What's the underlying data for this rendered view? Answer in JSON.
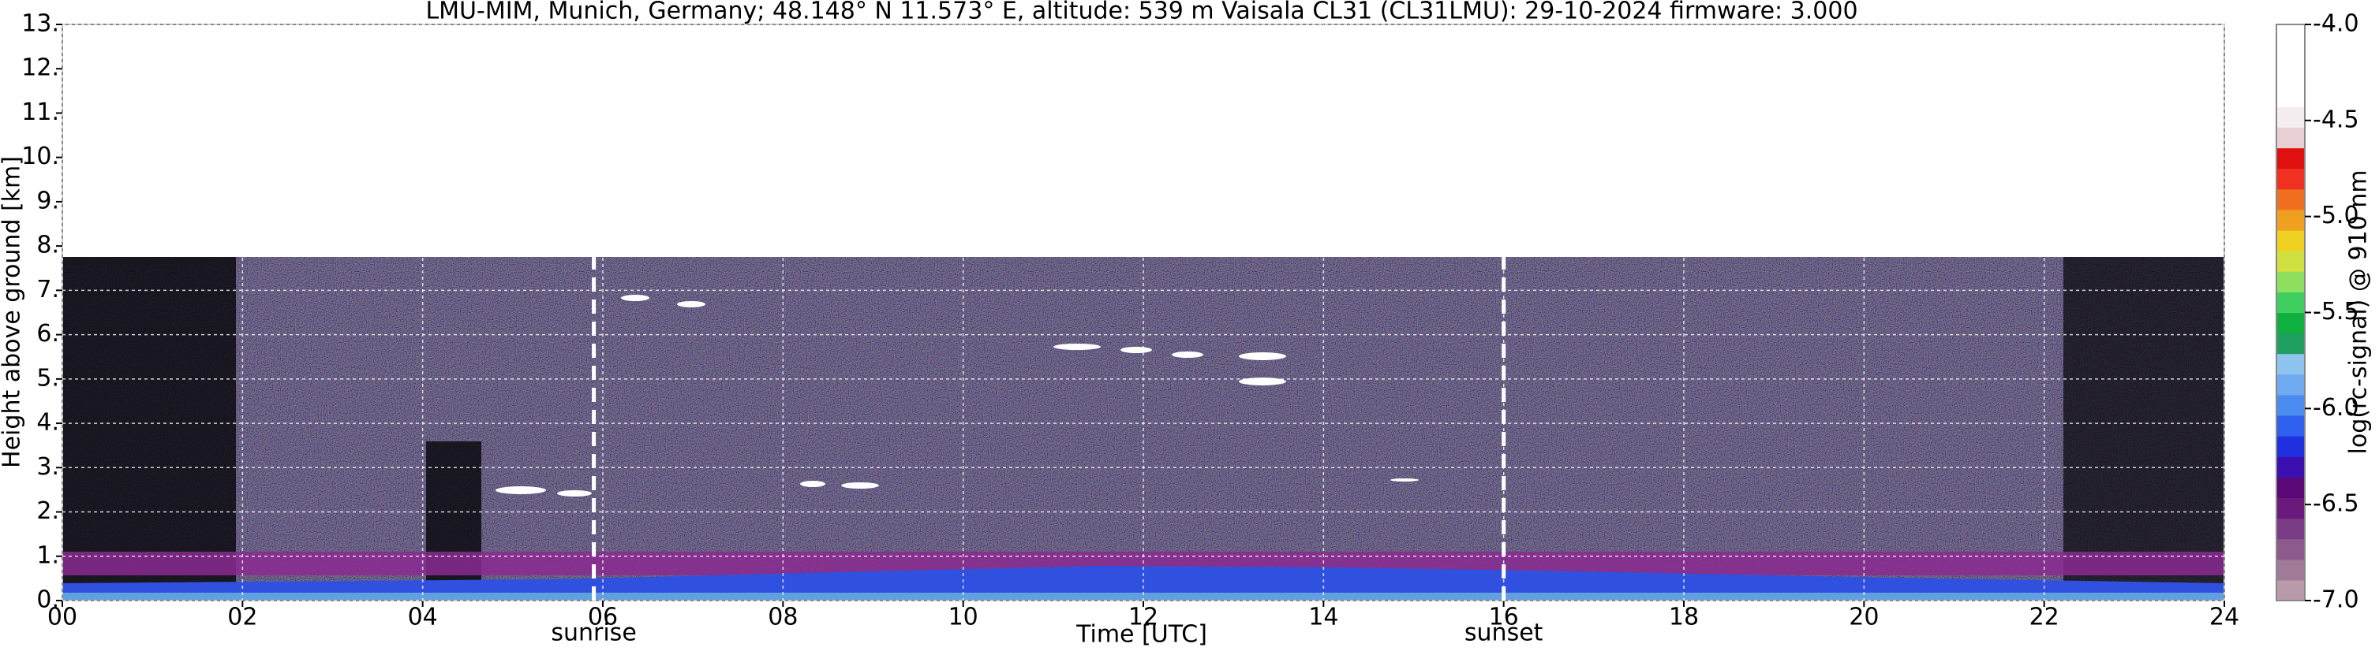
{
  "chart_data": {
    "type": "heatmap",
    "title": "LMU-MIM, Munich, Germany; 48.148° N 11.573° E, altitude: 539 m    Vaisala CL31 (CL31LMU): 29-10-2024    firmware: 3.000",
    "xlabel": "Time [UTC]",
    "ylabel": "Height above ground [km]",
    "xlim": [
      0,
      24
    ],
    "ylim": [
      0,
      13
    ],
    "xticks": [
      {
        "value": 0,
        "label": "00"
      },
      {
        "value": 2,
        "label": "02"
      },
      {
        "value": 4,
        "label": "04"
      },
      {
        "value": 6,
        "label": "06"
      },
      {
        "value": 8,
        "label": "08"
      },
      {
        "value": 10,
        "label": "10"
      },
      {
        "value": 12,
        "label": "12"
      },
      {
        "value": 14,
        "label": "14"
      },
      {
        "value": 16,
        "label": "16"
      },
      {
        "value": 18,
        "label": "18"
      },
      {
        "value": 20,
        "label": "20"
      },
      {
        "value": 22,
        "label": "22"
      },
      {
        "value": 24,
        "label": "24"
      }
    ],
    "yticks": [
      {
        "value": 0,
        "label": "0."
      },
      {
        "value": 1,
        "label": "1."
      },
      {
        "value": 2,
        "label": "2."
      },
      {
        "value": 3,
        "label": "3."
      },
      {
        "value": 4,
        "label": "4."
      },
      {
        "value": 5,
        "label": "5."
      },
      {
        "value": 6,
        "label": "6."
      },
      {
        "value": 7,
        "label": "7."
      },
      {
        "value": 8,
        "label": "8."
      },
      {
        "value": 9,
        "label": "9."
      },
      {
        "value": 10,
        "label": "10."
      },
      {
        "value": 11,
        "label": "11."
      },
      {
        "value": 12,
        "label": "12."
      },
      {
        "value": 13,
        "label": "13."
      }
    ],
    "grid": true,
    "annotations": [
      {
        "text": "sunrise",
        "x": 5.9
      },
      {
        "text": "sunset",
        "x": 16.0
      }
    ],
    "colorbar": {
      "label": "log(rc-signal) @ 910 nm",
      "lim": [
        -7,
        -4
      ],
      "ticks": [
        {
          "value": -4.0,
          "label": "-4.0"
        },
        {
          "value": -4.5,
          "label": "-4.5"
        },
        {
          "value": -5.0,
          "label": "-5.0"
        },
        {
          "value": -5.5,
          "label": "-5.5"
        },
        {
          "value": -6.0,
          "label": "-6.0"
        },
        {
          "value": -6.5,
          "label": "-6.5"
        },
        {
          "value": -7.0,
          "label": "-7.0"
        }
      ],
      "colormap": [
        "#b89aaa",
        "#a07a98",
        "#8c5a8c",
        "#7a3c84",
        "#6a1a7c",
        "#5a0878",
        "#3a10b0",
        "#2030e0",
        "#3060f0",
        "#4c8cf0",
        "#70aaf0",
        "#90c4f0",
        "#20a060",
        "#10b040",
        "#40d060",
        "#90e060",
        "#d0e040",
        "#f0d020",
        "#f0a020",
        "#f07020",
        "#f03020",
        "#e01010",
        "#e8d0d4",
        "#f4eef0",
        "#ffffff",
        "#ffffff",
        "#ffffff",
        "#ffffff"
      ]
    }
  }
}
